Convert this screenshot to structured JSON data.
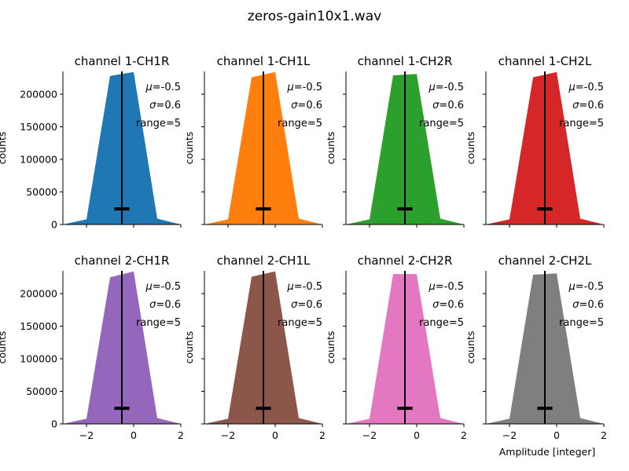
{
  "figure": {
    "title": "zeros-gain10x1.wav"
  },
  "chart_data": [
    {
      "type": "area",
      "title": "channel 1-CH1R",
      "color": "#1f77b4",
      "xlabel": "",
      "ylabel": "counts",
      "xlim": [
        -3,
        2
      ],
      "ylim": [
        0,
        235000
      ],
      "x": [
        -3,
        -2,
        -1,
        0,
        1,
        2
      ],
      "y": [
        0,
        8000,
        228000,
        234000,
        9000,
        0
      ],
      "mean": -0.5,
      "sigma": 0.6,
      "stats_text": [
        "μ=-0.5",
        "σ=0.6",
        "range=5"
      ],
      "xticks": [],
      "yticks": [
        "0",
        "50000",
        "100000",
        "150000",
        "200000"
      ]
    },
    {
      "type": "area",
      "title": "channel 1-CH1L",
      "color": "#ff7f0e",
      "xlabel": "",
      "ylabel": "counts",
      "xlim": [
        -3,
        2
      ],
      "ylim": [
        0,
        235000
      ],
      "x": [
        -3,
        -2,
        -1,
        0,
        1,
        2
      ],
      "y": [
        0,
        8000,
        226000,
        234000,
        9000,
        0
      ],
      "mean": -0.5,
      "sigma": 0.6,
      "stats_text": [
        "μ=-0.5",
        "σ=0.6",
        "range=5"
      ],
      "xticks": [],
      "yticks": []
    },
    {
      "type": "area",
      "title": "channel 1-CH2R",
      "color": "#2ca02c",
      "xlabel": "",
      "ylabel": "counts",
      "xlim": [
        -3,
        2
      ],
      "ylim": [
        0,
        235000
      ],
      "x": [
        -3,
        -2,
        -1,
        0,
        1,
        2
      ],
      "y": [
        0,
        8000,
        229000,
        231000,
        9000,
        0
      ],
      "mean": -0.5,
      "sigma": 0.6,
      "stats_text": [
        "μ=-0.5",
        "σ=0.6",
        "range=5"
      ],
      "xticks": [],
      "yticks": []
    },
    {
      "type": "area",
      "title": "channel 1-CH2L",
      "color": "#d62728",
      "xlabel": "",
      "ylabel": "counts",
      "xlim": [
        -3,
        2
      ],
      "ylim": [
        0,
        235000
      ],
      "x": [
        -3,
        -2,
        -1,
        0,
        1,
        2
      ],
      "y": [
        0,
        8000,
        226000,
        234000,
        9000,
        0
      ],
      "mean": -0.5,
      "sigma": 0.6,
      "stats_text": [
        "μ=-0.5",
        "σ=0.6",
        "range=5"
      ],
      "xticks": [],
      "yticks": []
    },
    {
      "type": "area",
      "title": "channel 2-CH1R",
      "color": "#9467bd",
      "xlabel": "",
      "ylabel": "counts",
      "xlim": [
        -3,
        2
      ],
      "ylim": [
        0,
        235000
      ],
      "x": [
        -3,
        -2,
        -1,
        0,
        1,
        2
      ],
      "y": [
        0,
        8000,
        225000,
        234000,
        9000,
        0
      ],
      "mean": -0.5,
      "sigma": 0.6,
      "stats_text": [
        "μ=-0.5",
        "σ=0.6",
        "range=5"
      ],
      "xticks": [
        "−2",
        "0",
        "2"
      ],
      "yticks": [
        "0",
        "50000",
        "100000",
        "150000",
        "200000"
      ]
    },
    {
      "type": "area",
      "title": "channel 2-CH1L",
      "color": "#8c564b",
      "xlabel": "",
      "ylabel": "counts",
      "xlim": [
        -3,
        2
      ],
      "ylim": [
        0,
        235000
      ],
      "x": [
        -3,
        -2,
        -1,
        0,
        1,
        2
      ],
      "y": [
        0,
        8000,
        226000,
        234000,
        9000,
        0
      ],
      "mean": -0.5,
      "sigma": 0.6,
      "stats_text": [
        "μ=-0.5",
        "σ=0.6",
        "range=5"
      ],
      "xticks": [
        "−2",
        "0",
        "2"
      ],
      "yticks": []
    },
    {
      "type": "area",
      "title": "channel 2-CH2R",
      "color": "#e377c2",
      "xlabel": "",
      "ylabel": "counts",
      "xlim": [
        -3,
        2
      ],
      "ylim": [
        0,
        235000
      ],
      "x": [
        -3,
        -2,
        -1,
        0,
        1,
        2
      ],
      "y": [
        0,
        8000,
        230000,
        230000,
        9000,
        0
      ],
      "mean": -0.5,
      "sigma": 0.6,
      "stats_text": [
        "μ=-0.5",
        "σ=0.6",
        "range=5"
      ],
      "xticks": [
        "−2",
        "0",
        "2"
      ],
      "yticks": []
    },
    {
      "type": "area",
      "title": "channel 2-CH2L",
      "color": "#7f7f7f",
      "xlabel": "Amplitude [integer]",
      "ylabel": "counts",
      "xlim": [
        -3,
        2
      ],
      "ylim": [
        0,
        235000
      ],
      "x": [
        -3,
        -2,
        -1,
        0,
        1,
        2
      ],
      "y": [
        0,
        8000,
        229000,
        231000,
        9000,
        0
      ],
      "mean": -0.5,
      "sigma": 0.6,
      "stats_text": [
        "μ=-0.5",
        "σ=0.6",
        "range=5"
      ],
      "xticks": [
        "−2",
        "0",
        "2"
      ],
      "yticks": []
    }
  ]
}
